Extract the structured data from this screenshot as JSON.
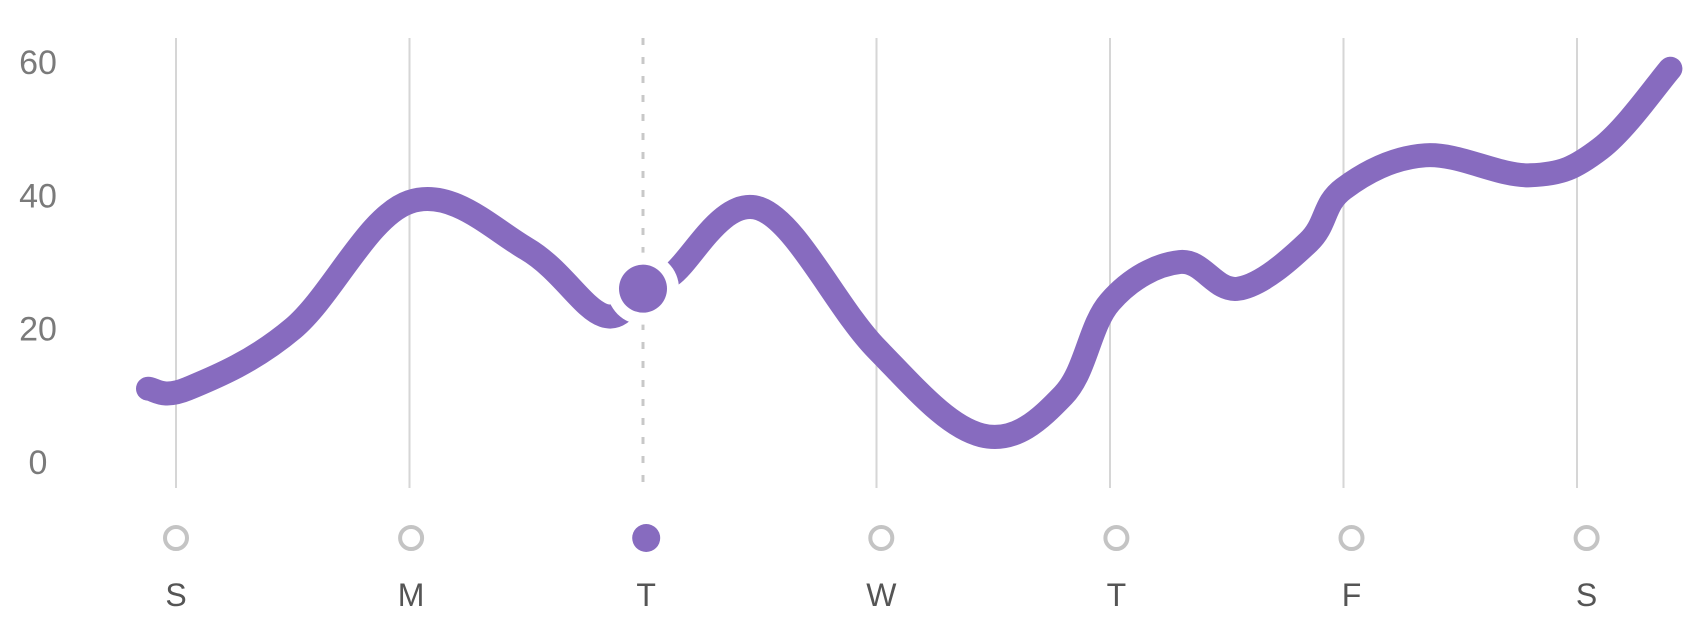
{
  "chart_data": {
    "type": "line",
    "categories": [
      "S",
      "M",
      "T",
      "W",
      "T",
      "F",
      "S"
    ],
    "selected_index": 2,
    "ylim": [
      0,
      60
    ],
    "yticks": [
      0,
      20,
      40,
      60
    ],
    "series": [
      {
        "x": [
          -0.12,
          0.05,
          0.5,
          1.0,
          1.5,
          1.83,
          2.0,
          2.12,
          2.5,
          3.0,
          3.45,
          3.8,
          4.0,
          4.3,
          4.55,
          4.85,
          5.0,
          5.35,
          5.8,
          6.1,
          6.4
        ],
        "values": [
          11,
          11,
          20,
          39,
          32,
          22,
          26,
          28,
          38,
          17,
          4,
          10,
          24,
          30,
          26,
          33,
          41,
          46,
          43,
          47,
          59
        ]
      }
    ],
    "highlight_point": {
      "x": 2.0,
      "y": 26
    },
    "grid": true,
    "legend": "none",
    "colors": {
      "line": "#876bbf",
      "grid": "#d6d6d6",
      "marker_inactive": "#c4c4c4"
    }
  }
}
